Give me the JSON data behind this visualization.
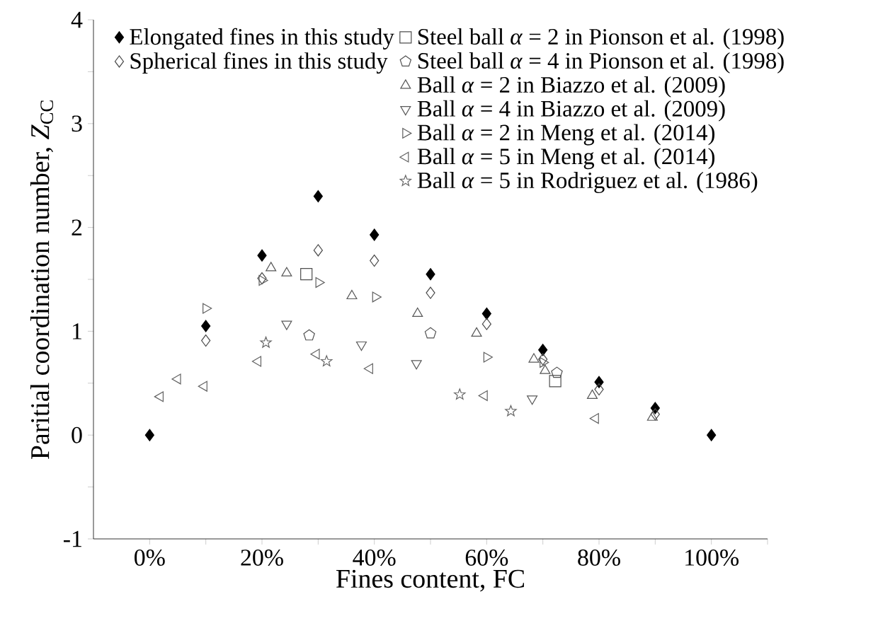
{
  "chart_data": {
    "type": "scatter",
    "xlabel": "Fines content, FC",
    "ylabel": "Paritial coordination number, *Z*$_{CC}$",
    "xlim": [
      -10,
      110
    ],
    "ylim": [
      -1,
      4
    ],
    "xticks": [
      {
        "value": 0,
        "label": "0%"
      },
      {
        "value": 10,
        "label": null
      },
      {
        "value": 20,
        "label": "20%"
      },
      {
        "value": 30,
        "label": null
      },
      {
        "value": 40,
        "label": "40%"
      },
      {
        "value": 50,
        "label": null
      },
      {
        "value": 60,
        "label": "60%"
      },
      {
        "value": 70,
        "label": null
      },
      {
        "value": 80,
        "label": "80%"
      },
      {
        "value": 90,
        "label": null
      },
      {
        "value": 100,
        "label": "100%"
      },
      {
        "value": 110,
        "label": null
      }
    ],
    "yticks": [
      -1,
      {
        "value": -0.5,
        "label": null
      },
      0,
      {
        "value": 0.5,
        "label": null
      },
      1,
      {
        "value": 1.5,
        "label": null
      },
      2,
      {
        "value": 2.5,
        "label": null
      },
      3,
      {
        "value": 3.5,
        "label": null
      },
      4
    ],
    "legend": "top left",
    "grid": false,
    "series": [
      {
        "name": "Elongated fines in this study",
        "color": "#000000",
        "marker": "diamond",
        "x": [
          0,
          10,
          20,
          30,
          40,
          50,
          60,
          70,
          80,
          90,
          100
        ],
        "values": [
          0,
          1.05,
          1.73,
          2.3,
          1.93,
          1.55,
          1.17,
          0.82,
          0.51,
          0.26,
          0
        ]
      },
      {
        "name": "Spherical fines in this study",
        "color": "#4a4a4a",
        "marker": "diamond",
        "x": [
          10,
          20,
          30,
          40,
          50,
          60,
          70,
          80,
          90
        ],
        "values": [
          0.91,
          1.51,
          1.78,
          1.68,
          1.37,
          1.07,
          0.73,
          0.44,
          0.2
        ]
      },
      {
        "name": "Steel ball *α* = 2 in Pionson et al. (1998)",
        "color": "#4e4e4e",
        "marker": "square",
        "x": [
          27.9,
          72.2
        ],
        "values": [
          1.55,
          0.52
        ]
      },
      {
        "name": "Steel ball *α* = 4 in Pionson et al. (1998)",
        "color": "#525252",
        "x": [
          28.4,
          50,
          72.5
        ],
        "values": [
          0.96,
          0.98,
          0.6
        ]
      },
      {
        "name": "Ball *α* = 2 in Biazzo et al. (2009)",
        "color": "#565656",
        "marker": "triangle",
        "x": [
          21.6,
          24.4,
          36.0,
          47.7,
          58.2,
          68.4,
          70.4,
          78.8,
          89.5
        ],
        "values": [
          1.61,
          1.56,
          1.34,
          1.17,
          0.98,
          0.73,
          0.62,
          0.38,
          0.17
        ]
      },
      {
        "name": "Ball *α* = 4 in Biazzo et al. (2009)",
        "color": "#5a5a5a",
        "x": [
          24.4,
          37.7,
          47.5,
          68.1
        ],
        "values": [
          1.07,
          0.87,
          0.69,
          0.35
        ]
      },
      {
        "name": "Ball *α* = 2 in Meng et al. (2014)",
        "color": "#5e5e5e",
        "x": [
          10,
          20,
          30.1,
          40.2,
          60,
          70
        ],
        "values": [
          1.22,
          1.49,
          1.47,
          1.33,
          0.75,
          0.7
        ]
      },
      {
        "name": "Ball *α* = 5 in Meng et al. (2014)",
        "color": "#626262",
        "x": [
          1.9,
          5.0,
          9.7,
          19.3,
          29.7,
          39.2,
          59.6,
          79.4
        ],
        "values": [
          0.37,
          0.54,
          0.47,
          0.71,
          0.78,
          0.64,
          0.38,
          0.16
        ]
      },
      {
        "name": "Ball *α* = 5 in Rodriguez et al. (1986)",
        "color": "#666666",
        "marker": "star",
        "x": [
          20.7,
          31.5,
          55.2,
          64.3
        ],
        "values": [
          0.89,
          0.71,
          0.39,
          0.23
        ]
      }
    ]
  }
}
